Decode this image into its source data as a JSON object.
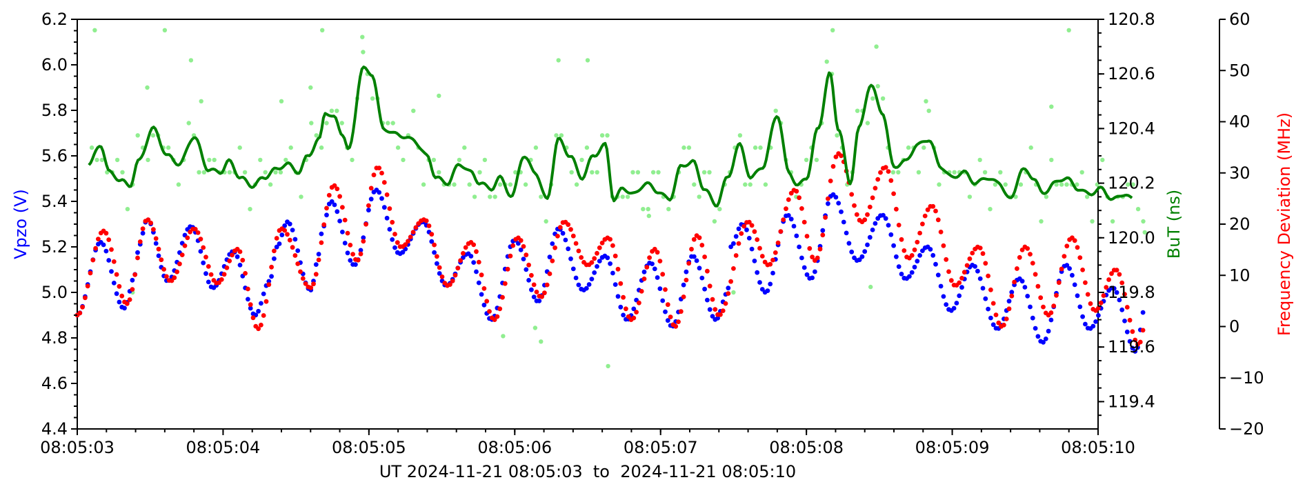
{
  "chart_data": {
    "type": "scatter",
    "xlabel": "UT 2024-11-21 08:05:03  to  2024-11-21 08:05:10",
    "x_tick_labels": [
      "08:05:03",
      "08:05:04",
      "08:05:05",
      "08:05:06",
      "08:05:07",
      "08:05:08",
      "08:05:09",
      "08:05:10"
    ],
    "x_range_seconds": [
      3,
      10
    ],
    "x_unit_note": "seconds past 08:05:00 UT",
    "axes": {
      "left": {
        "label": "Vpzo (V)",
        "color": "#0000ff",
        "ylim": [
          4.4,
          6.2
        ],
        "tick_labels": [
          "4.4",
          "4.6",
          "4.8",
          "5.0",
          "5.2",
          "5.4",
          "5.6",
          "5.8",
          "6.0",
          "6.2"
        ]
      },
      "right": {
        "label": "BuT (ns)",
        "color": "#008000",
        "ylim": [
          119.3,
          120.8
        ],
        "tick_labels": [
          "119.4",
          "119.6",
          "119.8",
          "120.0",
          "120.2",
          "120.4",
          "120.6",
          "120.8"
        ]
      },
      "far_right": {
        "label": "Frequency Deviation (MHz)",
        "color": "#ff0000",
        "ylim": [
          -20,
          60
        ],
        "tick_labels": [
          "−20",
          "−10",
          "0",
          "10",
          "20",
          "30",
          "40",
          "50",
          "60"
        ]
      }
    },
    "grid": false,
    "series": [
      {
        "axis": "left",
        "color": "#0000ff",
        "marker": "dot",
        "keypoints": [
          [
            3.0,
            4.9
          ],
          [
            3.16,
            5.22
          ],
          [
            3.32,
            4.93
          ],
          [
            3.4,
            5.08
          ],
          [
            3.42,
            5.2
          ],
          [
            3.48,
            5.32
          ],
          [
            3.62,
            5.05
          ],
          [
            3.78,
            5.29
          ],
          [
            3.93,
            5.02
          ],
          [
            4.07,
            5.18
          ],
          [
            4.22,
            4.9
          ],
          [
            4.32,
            5.05
          ],
          [
            4.37,
            5.2
          ],
          [
            4.44,
            5.31
          ],
          [
            4.6,
            5.01
          ],
          [
            4.66,
            5.17
          ],
          [
            4.68,
            5.28
          ],
          [
            4.74,
            5.4
          ],
          [
            4.9,
            5.12
          ],
          [
            5.05,
            5.45
          ],
          [
            5.21,
            5.17
          ],
          [
            5.37,
            5.31
          ],
          [
            5.53,
            5.03
          ],
          [
            5.68,
            5.17
          ],
          [
            5.84,
            4.88
          ],
          [
            6.0,
            5.23
          ],
          [
            6.16,
            4.96
          ],
          [
            6.3,
            5.28
          ],
          [
            6.47,
            5.01
          ],
          [
            6.62,
            5.16
          ],
          [
            6.77,
            4.88
          ],
          [
            6.93,
            5.13
          ],
          [
            7.08,
            4.85
          ],
          [
            7.22,
            5.16
          ],
          [
            7.38,
            4.88
          ],
          [
            7.46,
            5.0
          ],
          [
            7.48,
            5.2
          ],
          [
            7.56,
            5.3
          ],
          [
            7.72,
            5.0
          ],
          [
            7.87,
            5.34
          ],
          [
            8.03,
            5.06
          ],
          [
            8.18,
            5.43
          ],
          [
            8.35,
            5.14
          ],
          [
            8.52,
            5.34
          ],
          [
            8.68,
            5.06
          ],
          [
            8.83,
            5.2
          ],
          [
            8.99,
            4.92
          ],
          [
            9.14,
            5.12
          ],
          [
            9.31,
            4.84
          ],
          [
            9.46,
            5.06
          ],
          [
            9.62,
            4.78
          ],
          [
            9.78,
            5.12
          ],
          [
            9.94,
            4.84
          ],
          [
            10.1,
            5.02
          ],
          [
            10.26,
            4.74
          ],
          [
            10.32,
            4.93
          ]
        ]
      },
      {
        "axis": "left",
        "color": "#ff0000",
        "marker": "dot",
        "keypoints": [
          [
            3.0,
            4.9
          ],
          [
            3.18,
            5.27
          ],
          [
            3.34,
            4.95
          ],
          [
            3.48,
            5.32
          ],
          [
            3.64,
            5.05
          ],
          [
            3.8,
            5.28
          ],
          [
            3.96,
            5.04
          ],
          [
            4.1,
            5.19
          ],
          [
            4.24,
            4.84
          ],
          [
            4.4,
            5.28
          ],
          [
            4.6,
            5.02
          ],
          [
            4.76,
            5.47
          ],
          [
            4.92,
            5.14
          ],
          [
            5.06,
            5.55
          ],
          [
            5.22,
            5.2
          ],
          [
            5.38,
            5.32
          ],
          [
            5.54,
            5.03
          ],
          [
            5.7,
            5.22
          ],
          [
            5.86,
            4.88
          ],
          [
            6.02,
            5.24
          ],
          [
            6.18,
            4.98
          ],
          [
            6.34,
            5.31
          ],
          [
            6.5,
            5.12
          ],
          [
            6.64,
            5.24
          ],
          [
            6.8,
            4.88
          ],
          [
            6.96,
            5.19
          ],
          [
            7.1,
            4.85
          ],
          [
            7.25,
            5.25
          ],
          [
            7.4,
            4.9
          ],
          [
            7.6,
            5.31
          ],
          [
            7.74,
            5.12
          ],
          [
            7.92,
            5.45
          ],
          [
            8.06,
            5.14
          ],
          [
            8.22,
            5.61
          ],
          [
            8.38,
            5.31
          ],
          [
            8.54,
            5.55
          ],
          [
            8.7,
            5.15
          ],
          [
            8.86,
            5.38
          ],
          [
            9.02,
            5.03
          ],
          [
            9.18,
            5.2
          ],
          [
            9.34,
            4.85
          ],
          [
            9.5,
            5.2
          ],
          [
            9.66,
            4.9
          ],
          [
            9.82,
            5.24
          ],
          [
            9.98,
            4.92
          ],
          [
            10.12,
            5.1
          ],
          [
            10.28,
            4.77
          ],
          [
            10.32,
            4.85
          ]
        ]
      },
      {
        "axis": "right",
        "color": "#008000",
        "style": "line",
        "keypoints": [
          [
            3.08,
            120.27
          ],
          [
            3.16,
            120.34
          ],
          [
            3.22,
            120.24
          ],
          [
            3.3,
            120.21
          ],
          [
            3.36,
            120.19
          ],
          [
            3.42,
            120.28
          ],
          [
            3.52,
            120.4
          ],
          [
            3.62,
            120.3
          ],
          [
            3.7,
            120.27
          ],
          [
            3.8,
            120.37
          ],
          [
            3.9,
            120.25
          ],
          [
            3.98,
            120.24
          ],
          [
            4.04,
            120.28
          ],
          [
            4.12,
            120.22
          ],
          [
            4.2,
            120.19
          ],
          [
            4.28,
            120.22
          ],
          [
            4.36,
            120.25
          ],
          [
            4.44,
            120.27
          ],
          [
            4.52,
            120.24
          ],
          [
            4.58,
            120.3
          ],
          [
            4.66,
            120.36
          ],
          [
            4.7,
            120.46
          ],
          [
            4.76,
            120.44
          ],
          [
            4.82,
            120.38
          ],
          [
            4.86,
            120.32
          ],
          [
            4.96,
            120.62
          ],
          [
            5.02,
            120.6
          ],
          [
            5.1,
            120.4
          ],
          [
            5.18,
            120.38
          ],
          [
            5.3,
            120.36
          ],
          [
            5.4,
            120.3
          ],
          [
            5.46,
            120.22
          ],
          [
            5.54,
            120.2
          ],
          [
            5.62,
            120.27
          ],
          [
            5.7,
            120.24
          ],
          [
            5.76,
            120.2
          ],
          [
            5.84,
            120.18
          ],
          [
            5.9,
            120.22
          ],
          [
            5.98,
            120.15
          ],
          [
            6.06,
            120.3
          ],
          [
            6.14,
            120.24
          ],
          [
            6.22,
            120.14
          ],
          [
            6.3,
            120.36
          ],
          [
            6.38,
            120.3
          ],
          [
            6.46,
            120.22
          ],
          [
            6.54,
            120.3
          ],
          [
            6.62,
            120.34
          ],
          [
            6.68,
            120.14
          ],
          [
            6.74,
            120.18
          ],
          [
            6.82,
            120.16
          ],
          [
            6.9,
            120.2
          ],
          [
            6.98,
            120.17
          ],
          [
            7.06,
            120.14
          ],
          [
            7.14,
            120.26
          ],
          [
            7.22,
            120.28
          ],
          [
            7.3,
            120.18
          ],
          [
            7.38,
            120.12
          ],
          [
            7.46,
            120.22
          ],
          [
            7.54,
            120.34
          ],
          [
            7.62,
            120.22
          ],
          [
            7.7,
            120.26
          ],
          [
            7.8,
            120.45
          ],
          [
            7.88,
            120.24
          ],
          [
            7.94,
            120.19
          ],
          [
            8.0,
            120.22
          ],
          [
            8.08,
            120.4
          ],
          [
            8.16,
            120.6
          ],
          [
            8.22,
            120.4
          ],
          [
            8.3,
            120.2
          ],
          [
            8.36,
            120.4
          ],
          [
            8.44,
            120.56
          ],
          [
            8.52,
            120.46
          ],
          [
            8.6,
            120.26
          ],
          [
            8.68,
            120.28
          ],
          [
            8.76,
            120.34
          ],
          [
            8.84,
            120.36
          ],
          [
            8.92,
            120.26
          ],
          [
            9.0,
            120.22
          ],
          [
            9.08,
            120.24
          ],
          [
            9.16,
            120.2
          ],
          [
            9.24,
            120.22
          ],
          [
            9.32,
            120.2
          ],
          [
            9.4,
            120.14
          ],
          [
            9.48,
            120.25
          ],
          [
            9.56,
            120.22
          ],
          [
            9.62,
            120.16
          ],
          [
            9.7,
            120.2
          ],
          [
            9.78,
            120.22
          ],
          [
            9.86,
            120.18
          ],
          [
            9.94,
            120.16
          ],
          [
            10.02,
            120.18
          ],
          [
            10.1,
            120.14
          ],
          [
            10.18,
            120.16
          ],
          [
            10.24,
            120.14
          ]
        ]
      },
      {
        "axis": "right",
        "color": "#90ee90",
        "marker": "dot",
        "style": "scatter-quantized",
        "keypoints": [
          [
            3.12,
            120.76
          ],
          [
            3.6,
            120.76
          ],
          [
            3.78,
            120.65
          ],
          [
            4.68,
            120.76
          ],
          [
            4.96,
            120.68
          ],
          [
            5.48,
            120.52
          ],
          [
            6.3,
            120.65
          ],
          [
            6.5,
            120.65
          ],
          [
            8.18,
            120.76
          ],
          [
            8.48,
            120.7
          ],
          [
            9.8,
            120.76
          ],
          [
            3.48,
            120.55
          ],
          [
            3.85,
            120.5
          ],
          [
            4.4,
            120.5
          ],
          [
            4.6,
            120.55
          ],
          [
            8.82,
            120.5
          ],
          [
            9.68,
            120.48
          ],
          [
            5.92,
            119.64
          ],
          [
            6.18,
            119.62
          ],
          [
            6.14,
            119.67
          ],
          [
            6.64,
            119.53
          ],
          [
            3.38,
            119.8
          ],
          [
            7.5,
            119.8
          ],
          [
            10.32,
            120.02
          ],
          [
            8.44,
            119.82
          ],
          [
            6.92,
            120.08
          ]
        ]
      }
    ]
  }
}
